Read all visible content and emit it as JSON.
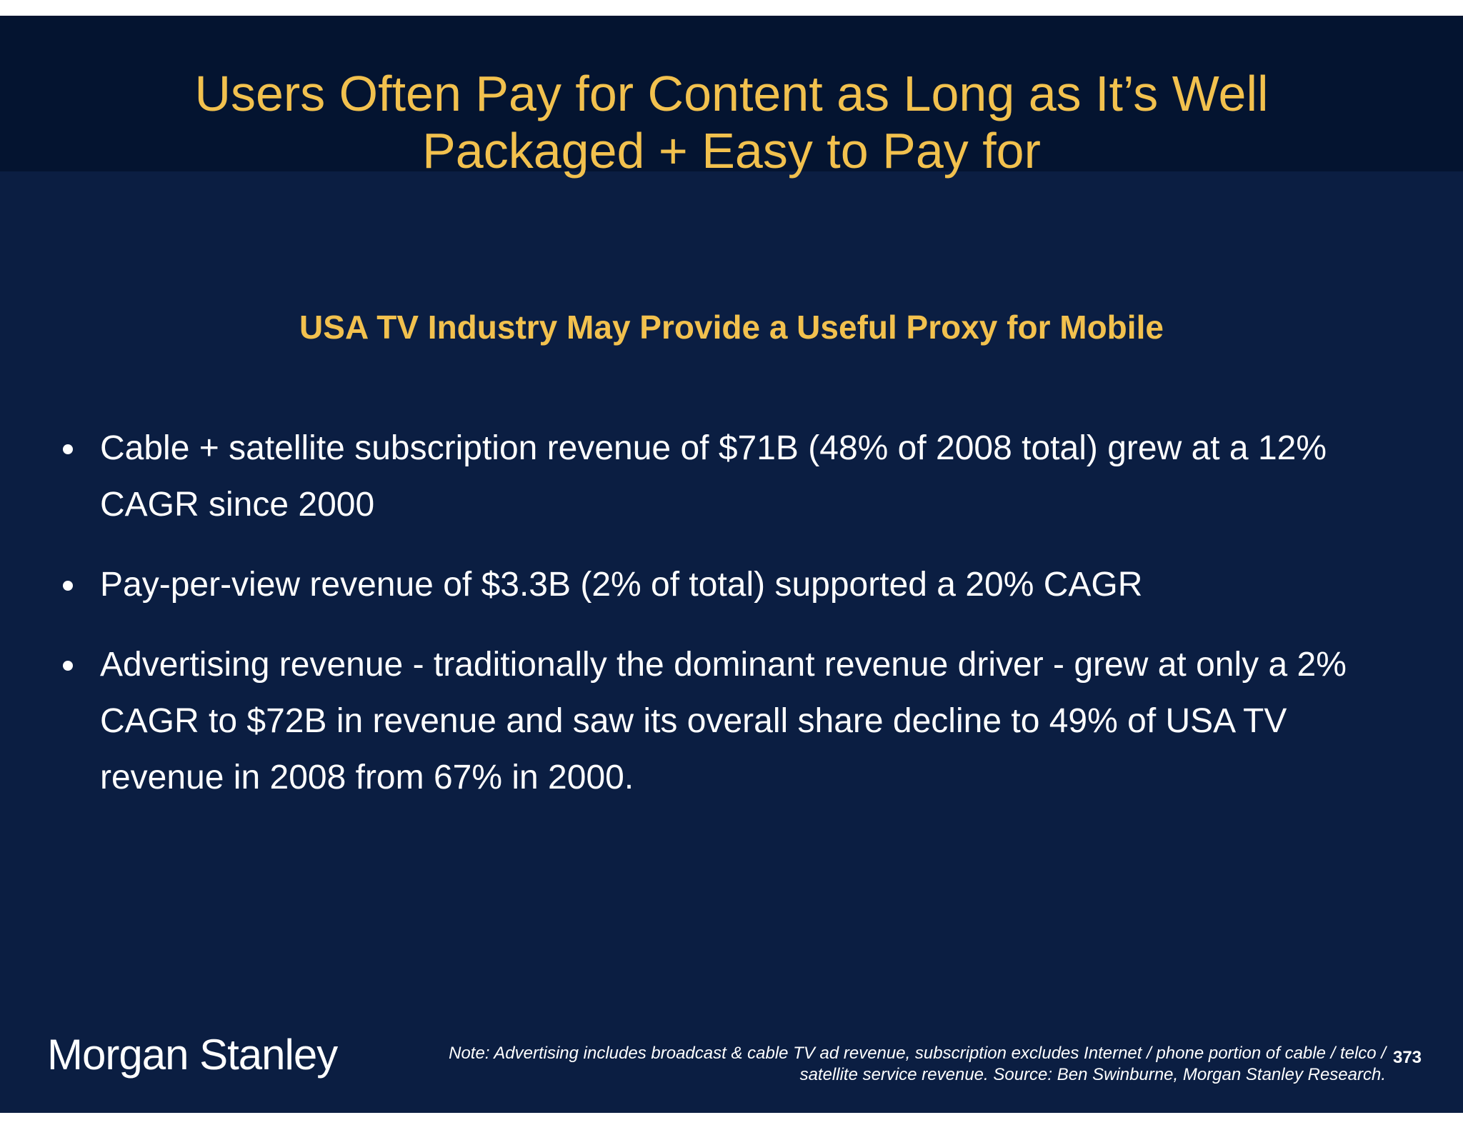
{
  "slide": {
    "title_lines": [
      "Users Often Pay for Content as Long as It’s Well",
      "Packaged + Easy to Pay for"
    ],
    "subtitle": "USA TV Industry May Provide a Useful Proxy for Mobile",
    "bullets": [
      "Cable + satellite subscription revenue of $71B (48% of 2008 total) grew at a 12% CAGR since 2000",
      "Pay-per-view revenue of $3.3B (2% of total) supported a 20% CAGR",
      "Advertising revenue - traditionally the dominant revenue driver - grew at only a 2% CAGR to $72B in revenue and saw its overall share decline to 49% of USA TV revenue in 2008 from 67% in 2000."
    ]
  },
  "footer": {
    "logo_text": "Morgan Stanley",
    "note_lines": [
      "Note: Advertising includes broadcast & cable TV ad revenue, subscription excludes Internet / phone portion of cable / telco /",
      "satellite service revenue. Source: Ben Swinburne, Morgan Stanley Research."
    ],
    "page_number": "373"
  },
  "colors": {
    "background": "#0b1e42",
    "title_band": "#041430",
    "accent": "#f2c14e",
    "text": "#ffffff"
  }
}
